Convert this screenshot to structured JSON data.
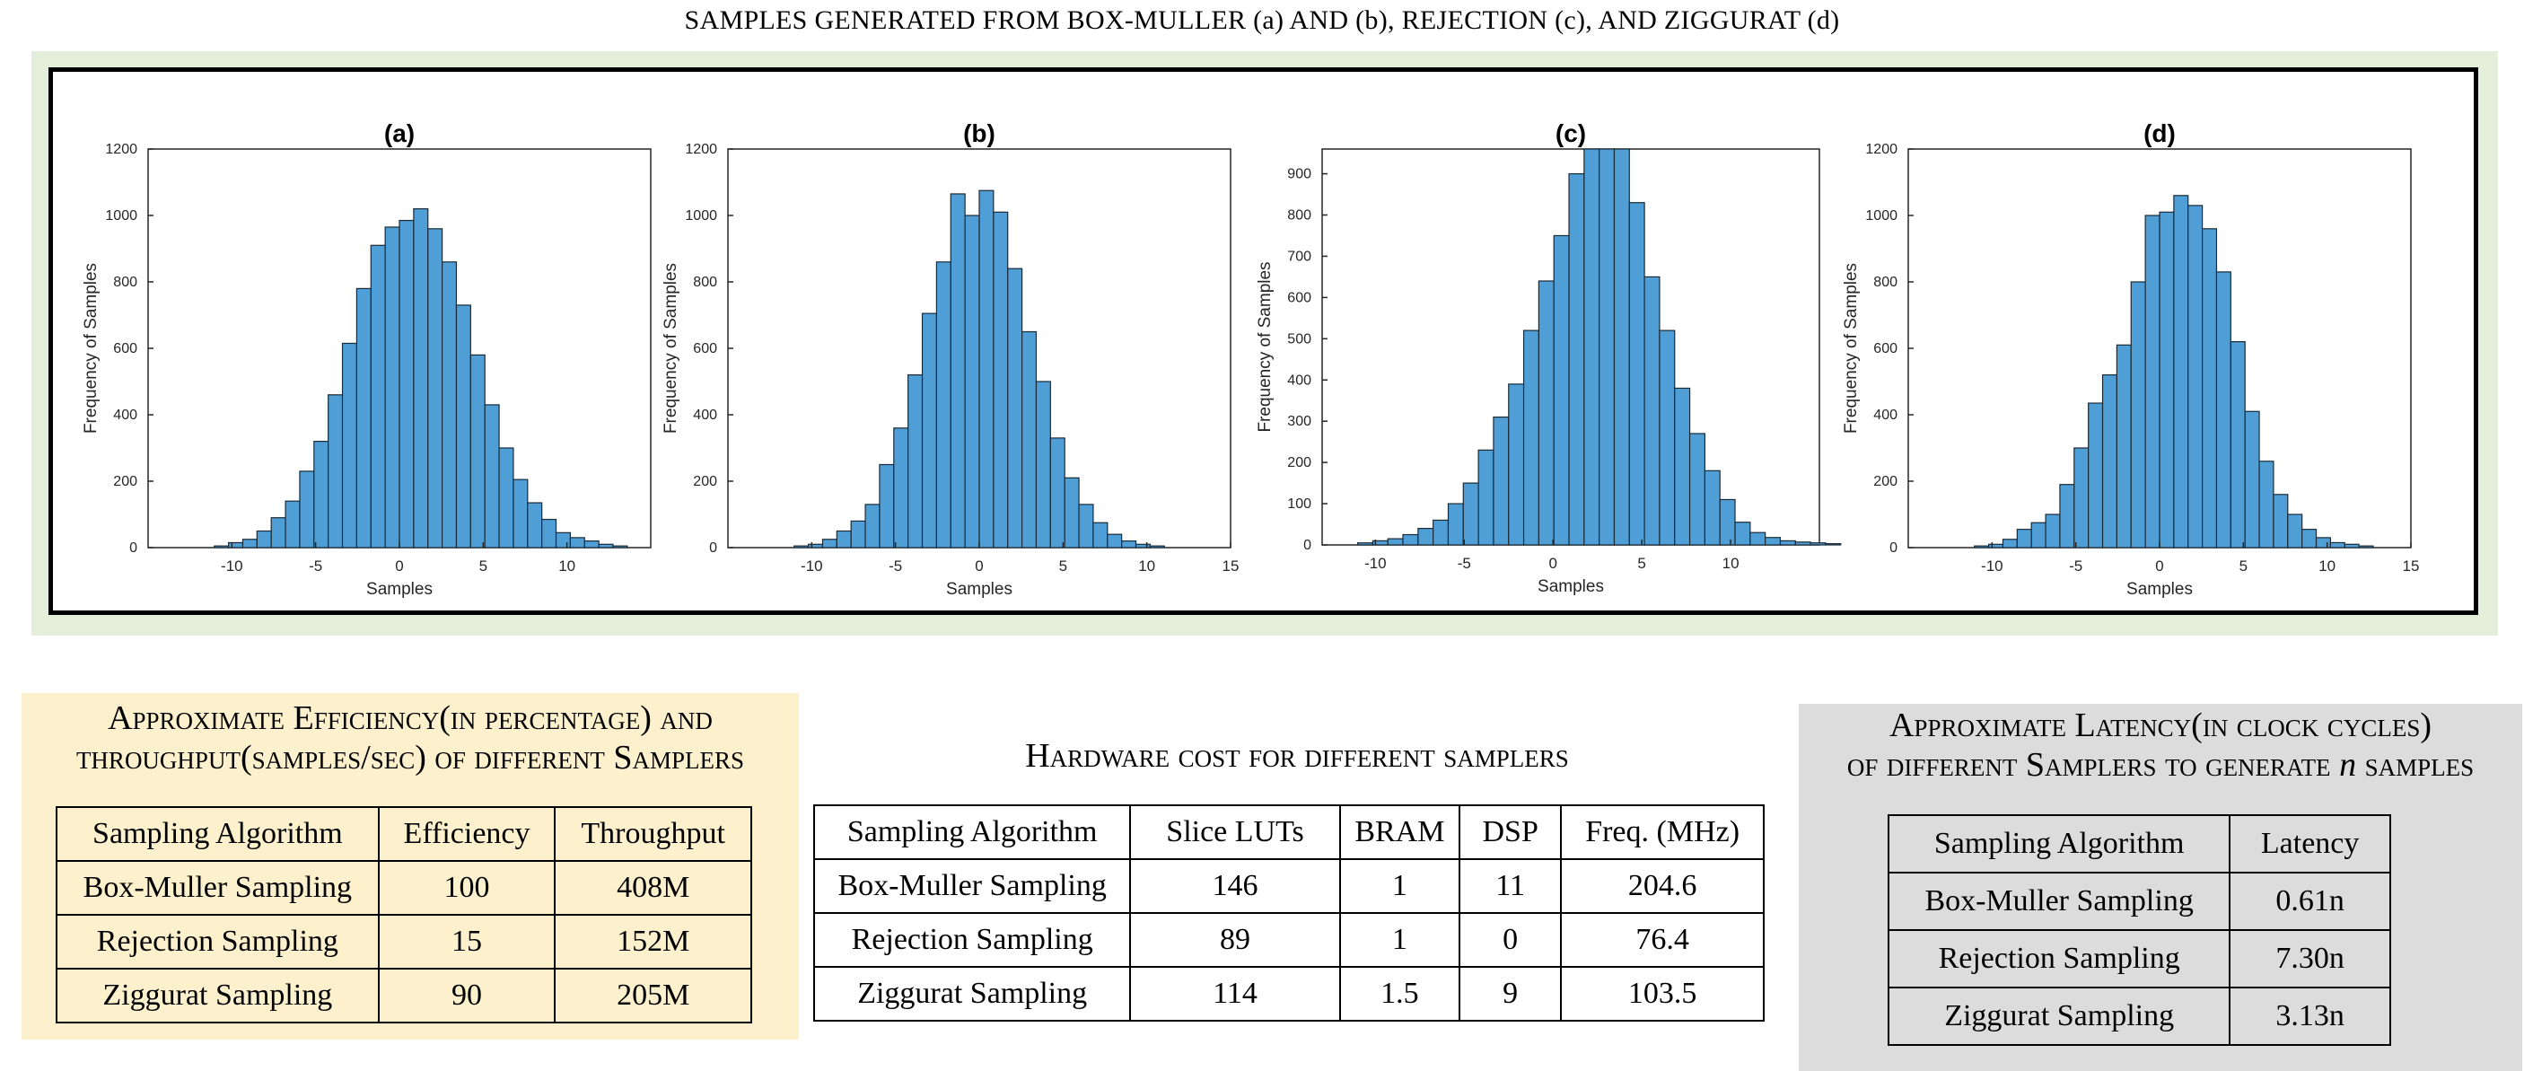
{
  "title": "SAMPLES GENERATED FROM BOX-MULLER (a) AND (b), REJECTION (c), AND ZIGGURAT (d)",
  "colors": {
    "bar": "#4f9fd6",
    "bar_edge": "#1a2a36",
    "green_panel": "#e3eedb",
    "yellow_panel": "#fdf0cc",
    "gray_panel": "#dcdcdc"
  },
  "chart_data": [
    {
      "type": "bar",
      "title": "(a)",
      "xlabel": "Samples",
      "ylabel": "Frequency of Samples",
      "xlim": [
        -15,
        15
      ],
      "ylim": [
        0,
        1200
      ],
      "xticks": [
        -10,
        -5,
        0,
        5,
        10
      ],
      "yticks": [
        0,
        200,
        400,
        600,
        800,
        1000,
        1200
      ],
      "bin_start": -11.05,
      "bin_width": 0.85,
      "values": [
        5,
        15,
        25,
        50,
        90,
        140,
        230,
        320,
        460,
        615,
        780,
        910,
        965,
        985,
        1020,
        960,
        860,
        730,
        580,
        430,
        300,
        205,
        135,
        85,
        45,
        30,
        20,
        10,
        5
      ]
    },
    {
      "type": "bar",
      "title": "(b)",
      "xlabel": "Samples",
      "ylabel": "Frequency of Samples",
      "xlim": [
        -15,
        15
      ],
      "ylim": [
        0,
        1200
      ],
      "xticks": [
        -10,
        -5,
        0,
        5,
        10,
        15
      ],
      "yticks": [
        0,
        200,
        400,
        600,
        800,
        1000,
        1200
      ],
      "bin_start": -11.05,
      "bin_width": 0.85,
      "values": [
        5,
        10,
        25,
        50,
        80,
        130,
        250,
        360,
        520,
        705,
        860,
        1065,
        1000,
        1075,
        1010,
        840,
        650,
        500,
        330,
        210,
        130,
        75,
        40,
        20,
        10,
        5
      ]
    },
    {
      "type": "bar",
      "title": "(c)",
      "xlabel": "Samples",
      "ylabel": "Frequency of Samples",
      "xlim": [
        -13,
        15
      ],
      "ylim": [
        0,
        960
      ],
      "xticks": [
        -10,
        -5,
        0,
        5,
        10
      ],
      "yticks": [
        0,
        100,
        200,
        300,
        400,
        500,
        600,
        700,
        800,
        900
      ],
      "bin_start": -11.0,
      "bin_width": 0.85,
      "values": [
        5,
        10,
        15,
        25,
        40,
        60,
        100,
        150,
        230,
        310,
        390,
        520,
        640,
        750,
        900,
        980,
        960,
        980,
        830,
        650,
        520,
        380,
        270,
        180,
        110,
        55,
        30,
        18,
        10,
        7,
        5,
        3
      ]
    },
    {
      "type": "bar",
      "title": "(d)",
      "xlabel": "Samples",
      "ylabel": "Frequency of Samples",
      "xlim": [
        -15,
        15
      ],
      "ylim": [
        0,
        1200
      ],
      "xticks": [
        -10,
        -5,
        0,
        5,
        10,
        15
      ],
      "yticks": [
        0,
        200,
        400,
        600,
        800,
        1000,
        1200
      ],
      "bin_start": -11.05,
      "bin_width": 0.85,
      "values": [
        5,
        10,
        25,
        55,
        75,
        100,
        190,
        300,
        435,
        520,
        610,
        800,
        1000,
        1010,
        1060,
        1030,
        960,
        830,
        620,
        410,
        260,
        160,
        100,
        55,
        30,
        15,
        10,
        5
      ]
    }
  ],
  "efficiency_table": {
    "caption_line1": "Approximate Efficiency(in percentage) and",
    "caption_line2": "throughput(samples/sec) of different Samplers",
    "headers": [
      "Sampling Algorithm",
      "Efficiency",
      "Throughput"
    ],
    "rows": [
      [
        "Box-Muller Sampling",
        "100",
        "408M"
      ],
      [
        "Rejection Sampling",
        "15",
        "152M"
      ],
      [
        "Ziggurat Sampling",
        "90",
        "205M"
      ]
    ]
  },
  "hardware_table": {
    "caption": "Hardware cost for different samplers",
    "headers": [
      "Sampling Algorithm",
      "Slice LUTs",
      "BRAM",
      "DSP",
      "Freq. (MHz)"
    ],
    "rows": [
      [
        "Box-Muller Sampling",
        "146",
        "1",
        "11",
        "204.6"
      ],
      [
        "Rejection Sampling",
        "89",
        "1",
        "0",
        "76.4"
      ],
      [
        "Ziggurat Sampling",
        "114",
        "1.5",
        "9",
        "103.5"
      ]
    ]
  },
  "latency_table": {
    "caption_line1": "Approximate Latency(in clock cycles)",
    "caption_line2_prefix": "of different Samplers to generate ",
    "caption_line2_var": "n",
    "caption_line2_suffix": " samples",
    "headers": [
      "Sampling Algorithm",
      "Latency"
    ],
    "rows": [
      [
        "Box-Muller Sampling",
        "0.61n"
      ],
      [
        "Rejection Sampling",
        "7.30n"
      ],
      [
        "Ziggurat Sampling",
        "3.13n"
      ]
    ]
  }
}
